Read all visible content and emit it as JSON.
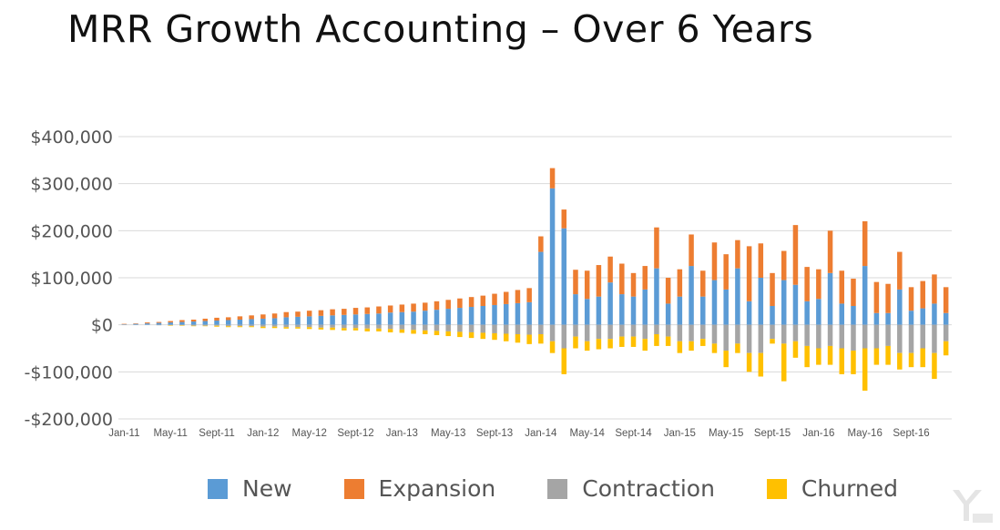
{
  "title": "MRR Growth Accounting – Over 6 Years",
  "chart_data": {
    "type": "bar",
    "stacked": true,
    "title": "MRR Growth Accounting – Over 6 Years",
    "xlabel": "",
    "ylabel": "",
    "ylim": [
      -200000,
      400000
    ],
    "yticks": [
      400000,
      300000,
      200000,
      100000,
      0,
      -100000,
      -200000
    ],
    "ytick_labels": [
      "$400,000",
      "$300,000",
      "$200,000",
      "$100,000",
      "$0",
      "-$100,000",
      "-$200,000"
    ],
    "xtick_labels": [
      {
        "index": 0,
        "label": "Jan-11"
      },
      {
        "index": 4,
        "label": "May-11"
      },
      {
        "index": 8,
        "label": "Sept-11"
      },
      {
        "index": 12,
        "label": "Jan-12"
      },
      {
        "index": 16,
        "label": "May-12"
      },
      {
        "index": 20,
        "label": "Sept-12"
      },
      {
        "index": 24,
        "label": "Jan-13"
      },
      {
        "index": 28,
        "label": "May-13"
      },
      {
        "index": 32,
        "label": "Sept-13"
      },
      {
        "index": 36,
        "label": "Jan-14"
      },
      {
        "index": 40,
        "label": "May-14"
      },
      {
        "index": 44,
        "label": "Sept-14"
      },
      {
        "index": 48,
        "label": "Jan-15"
      },
      {
        "index": 52,
        "label": "May-15"
      },
      {
        "index": 56,
        "label": "Sept-15"
      },
      {
        "index": 60,
        "label": "Jan-16"
      },
      {
        "index": 64,
        "label": "May-16"
      },
      {
        "index": 68,
        "label": "Sept-16"
      }
    ],
    "grid": true,
    "legend_position": "bottom",
    "series": [
      {
        "name": "New",
        "color": "#5B9BD5",
        "values": [
          1000,
          2000,
          3000,
          4000,
          5000,
          6000,
          7000,
          8000,
          9000,
          10000,
          11000,
          12000,
          13000,
          14000,
          16000,
          17000,
          18000,
          19000,
          20000,
          21000,
          22000,
          23000,
          24000,
          26000,
          27000,
          28000,
          30000,
          32000,
          34000,
          36000,
          38000,
          40000,
          42000,
          44000,
          46000,
          48000,
          155000,
          290000,
          205000,
          65000,
          55000,
          60000,
          90000,
          65000,
          60000,
          75000,
          120000,
          45000,
          60000,
          125000,
          60000,
          95000,
          75000,
          120000,
          50000,
          100000,
          40000,
          95000,
          85000,
          50000,
          55000,
          110000,
          45000,
          40000,
          125000,
          25000,
          25000,
          75000,
          30000,
          35000,
          45000,
          25000
        ]
      },
      {
        "name": "Expansion",
        "color": "#ED7D31",
        "values": [
          1000,
          1000,
          2000,
          2000,
          3000,
          4000,
          4000,
          5000,
          6000,
          6000,
          7000,
          8000,
          9000,
          10000,
          11000,
          11000,
          12000,
          12000,
          13000,
          13000,
          14000,
          14000,
          15000,
          15000,
          16000,
          17000,
          17000,
          18000,
          19000,
          20000,
          21000,
          22000,
          24000,
          26000,
          28000,
          30000,
          33000,
          43000,
          40000,
          52000,
          60000,
          67000,
          55000,
          65000,
          50000,
          50000,
          87000,
          55000,
          58000,
          67000,
          55000,
          80000,
          75000,
          60000,
          117000,
          73000,
          70000,
          62000,
          127000,
          73000,
          63000,
          90000,
          70000,
          58000,
          95000,
          66000,
          62000,
          80000,
          50000,
          58000,
          62000,
          55000
        ]
      },
      {
        "name": "Contraction",
        "color": "#A5A5A5",
        "values": [
          0,
          0,
          0,
          -1000,
          -1000,
          -1000,
          -2000,
          -2000,
          -2000,
          -3000,
          -3000,
          -3000,
          -4000,
          -4000,
          -5000,
          -5000,
          -5000,
          -6000,
          -6000,
          -7000,
          -7000,
          -8000,
          -8000,
          -9000,
          -10000,
          -11000,
          -12000,
          -13000,
          -14000,
          -15000,
          -16000,
          -17000,
          -18000,
          -19000,
          -20000,
          -21000,
          -20000,
          -35000,
          -50000,
          -25000,
          -35000,
          -30000,
          -30000,
          -25000,
          -25000,
          -30000,
          -20000,
          -25000,
          -35000,
          -35000,
          -30000,
          -40000,
          -55000,
          -40000,
          -60000,
          -60000,
          -30000,
          -40000,
          -35000,
          -45000,
          -50000,
          -45000,
          -50000,
          -55000,
          -50000,
          -50000,
          -45000,
          -60000,
          -60000,
          -50000,
          -60000,
          -35000
        ]
      },
      {
        "name": "Churned",
        "color": "#FFC000",
        "values": [
          0,
          0,
          0,
          0,
          -1000,
          -1000,
          -1000,
          -1000,
          -2000,
          -2000,
          -2000,
          -2000,
          -3000,
          -3000,
          -3000,
          -3000,
          -4000,
          -4000,
          -5000,
          -5000,
          -5000,
          -6000,
          -6000,
          -7000,
          -7000,
          -8000,
          -8000,
          -9000,
          -10000,
          -11000,
          -12000,
          -13000,
          -14000,
          -16000,
          -18000,
          -20000,
          -20000,
          -25000,
          -55000,
          -25000,
          -20000,
          -22000,
          -20000,
          -22000,
          -22000,
          -25000,
          -25000,
          -20000,
          -25000,
          -20000,
          -15000,
          -20000,
          -35000,
          -20000,
          -40000,
          -50000,
          -10000,
          -80000,
          -35000,
          -45000,
          -35000,
          -40000,
          -55000,
          -50000,
          -90000,
          -35000,
          -40000,
          -35000,
          -30000,
          -40000,
          -55000,
          -30000
        ]
      }
    ]
  },
  "watermark": {
    "icon": "yiou-logo-watermark"
  }
}
